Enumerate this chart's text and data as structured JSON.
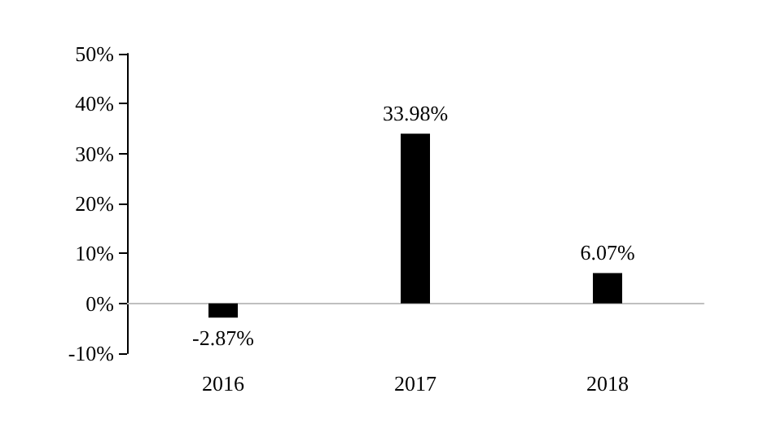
{
  "chart_data": {
    "type": "bar",
    "categories": [
      "2016",
      "2017",
      "2018"
    ],
    "values": [
      -2.87,
      33.98,
      6.07
    ],
    "color": "#000000",
    "value_labels": [
      "-2.87%",
      "33.98%",
      "6.07%"
    ],
    "ylim": [
      -10,
      50
    ],
    "yticks": [
      {
        "value": -10,
        "label": "-10%"
      },
      {
        "value": 0,
        "label": "0%"
      },
      {
        "value": 10,
        "label": "10%"
      },
      {
        "value": 20,
        "label": "20%"
      },
      {
        "value": 30,
        "label": "30%"
      },
      {
        "value": 40,
        "label": "40%"
      },
      {
        "value": 50,
        "label": "50%"
      }
    ]
  }
}
